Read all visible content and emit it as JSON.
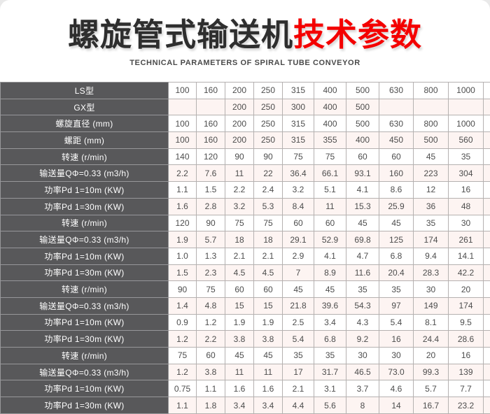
{
  "page": {
    "title_black": "螺旋管式输送机",
    "title_red": "技术参数",
    "subtitle": "TECHNICAL PARAMETERS OF SPIRAL TUBE CONVEYOR"
  },
  "colors": {
    "title_red": "#f40000",
    "label_cell_bg": "#58585a",
    "alt_row_bg": "#fdf4f2",
    "cell_border": "#b5b1b0"
  },
  "table": {
    "label_col_width": 240,
    "data_col_widths": [
      40,
      41,
      41,
      41,
      45,
      46,
      47,
      49,
      50,
      50,
      50
    ],
    "rows": [
      {
        "label": "LS型",
        "values": [
          "100",
          "160",
          "200",
          "250",
          "315",
          "400",
          "500",
          "630",
          "800",
          "1000",
          "1250"
        ]
      },
      {
        "label": "GX型",
        "values": [
          "",
          "",
          "200",
          "250",
          "300",
          "400",
          "500",
          "",
          "",
          "",
          ""
        ]
      },
      {
        "label": "螺旋直径 (mm)",
        "values": [
          "100",
          "160",
          "200",
          "250",
          "315",
          "400",
          "500",
          "630",
          "800",
          "1000",
          "1250"
        ]
      },
      {
        "label": "螺距 (mm)",
        "values": [
          "100",
          "160",
          "200",
          "250",
          "315",
          "355",
          "400",
          "450",
          "500",
          "560",
          "630"
        ]
      },
      {
        "label": "转速 (r/min)",
        "values": [
          "140",
          "120",
          "90",
          "90",
          "75",
          "75",
          "60",
          "60",
          "45",
          "35",
          "30"
        ]
      },
      {
        "label": "输送量QΦ=0.33 (m3/h)",
        "values": [
          "2.2",
          "7.6",
          "11",
          "22",
          "36.4",
          "66.1",
          "93.1",
          "160",
          "223",
          "304",
          "458"
        ]
      },
      {
        "label": "功率Pd 1=10m (KW)",
        "values": [
          "1.1",
          "1.5",
          "2.2",
          "2.4",
          "3.2",
          "5.1",
          "4.1",
          "8.6",
          "12",
          "16",
          "24.4"
        ]
      },
      {
        "label": "功率Pd 1=30m (KW)",
        "values": [
          "1.6",
          "2.8",
          "3.2",
          "5.3",
          "8.4",
          "11",
          "15.3",
          "25.9",
          "36",
          "48",
          "73.3"
        ]
      },
      {
        "label": "转速 (r/min)",
        "values": [
          "120",
          "90",
          "75",
          "75",
          "60",
          "60",
          "45",
          "45",
          "35",
          "30",
          "20"
        ]
      },
      {
        "label": "输送量QΦ=0.33 (m3/h)",
        "values": [
          "1.9",
          "5.7",
          "18",
          "18",
          "29.1",
          "52.9",
          "69.8",
          "125",
          "174",
          "261",
          "305"
        ]
      },
      {
        "label": "功率Pd 1=10m (KW)",
        "values": [
          "1.0",
          "1.3",
          "2.1",
          "2.1",
          "2.9",
          "4.1",
          "4.7",
          "6.8",
          "9.4",
          "14.1",
          "16.5"
        ]
      },
      {
        "label": "功率Pd 1=30m (KW)",
        "values": [
          "1.5",
          "2.3",
          "4.5",
          "4.5",
          "7",
          "8.9",
          "11.6",
          "20.4",
          "28.3",
          "42.2",
          "49.5"
        ]
      },
      {
        "label": "转速 (r/min)",
        "values": [
          "90",
          "75",
          "60",
          "60",
          "45",
          "45",
          "35",
          "35",
          "30",
          "20",
          "16"
        ]
      },
      {
        "label": "输送量QΦ=0.33 (m3/h)",
        "values": [
          "1.4",
          "4.8",
          "15",
          "15",
          "21.8",
          "39.6",
          "54.3",
          "97",
          "149",
          "174",
          "244"
        ]
      },
      {
        "label": "功率Pd 1=10m (KW)",
        "values": [
          "0.9",
          "1.2",
          "1.9",
          "1.9",
          "2.5",
          "3.4",
          "4.3",
          "5.4",
          "8.1",
          "9.5",
          "13.3"
        ]
      },
      {
        "label": "功率Pd 1=30m (KW)",
        "values": [
          "1.2",
          "2.2",
          "3.8",
          "3.8",
          "5.4",
          "6.8",
          "9.2",
          "16",
          "24.4",
          "28.6",
          "39.9"
        ]
      },
      {
        "label": "转速 (r/min)",
        "values": [
          "75",
          "60",
          "45",
          "45",
          "35",
          "35",
          "30",
          "30",
          "20",
          "16",
          "13"
        ]
      },
      {
        "label": "输送量QΦ=0.33 (m3/h)",
        "values": [
          "1.2",
          "3.8",
          "11",
          "11",
          "17",
          "31.7",
          "46.5",
          "73.0",
          "99.3",
          "139",
          "199"
        ]
      },
      {
        "label": "功率Pd 1=10m (KW)",
        "values": [
          "0.75",
          "1.1",
          "1.6",
          "1.6",
          "2.1",
          "3.1",
          "3.7",
          "4.6",
          "5.7",
          "7.7",
          "11"
        ]
      },
      {
        "label": "功率Pd 1=30m (KW)",
        "values": [
          "1.1",
          "1.8",
          "3.4",
          "3.4",
          "4.4",
          "5.6",
          "8",
          "14",
          "16.7",
          "23.2",
          "33"
        ]
      }
    ]
  }
}
